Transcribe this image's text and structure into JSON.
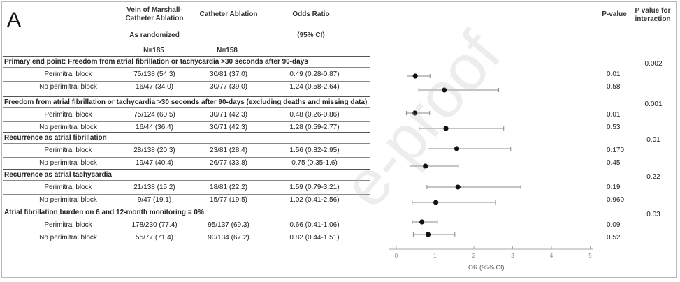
{
  "panel_label": "A",
  "headers": {
    "vom": "Vein of Marshall-Catheter Ablation",
    "ca": "Catheter Ablation",
    "or": "Odds Ratio",
    "as_randomized": "As randomized",
    "ci": "(95% CI)",
    "n_vom": "N=185",
    "n_ca": "N=158",
    "pvalue": "P-value",
    "pinteraction": "P value for interaction"
  },
  "sections": [
    {
      "title": "Primary end point: Freedom from atrial fibrillation or tachycardia >30 seconds after 90-days",
      "p_interaction": "0.002",
      "rows": [
        {
          "label": "Perimitral block",
          "vom": "75/138 (54.3)",
          "ca": "30/81 (37.0)",
          "or_text": "0.49 (0.28-0.87)",
          "p": "0.01"
        },
        {
          "label": "No perimitral block",
          "vom": "16/47 (34.0)",
          "ca": "30/77 (39.0)",
          "or_text": "1.24 (0.58-2.64)",
          "p": "0.58"
        }
      ]
    },
    {
      "title": "Freedom from atrial fibrillation or tachycardia >30 seconds after 90-days (excluding deaths and missing data)",
      "p_interaction": "0.001",
      "rows": [
        {
          "label": "Perimitral block",
          "vom": "75/124 (60.5)",
          "ca": "30/71 (42.3)",
          "or_text": "0.48 (0.26-0.86)",
          "p": "0.01"
        },
        {
          "label": "No perimitral block",
          "vom": "16/44 (36.4)",
          "ca": "30/71 (42.3)",
          "or_text": "1.28 (0.59-2.77)",
          "p": "0.53"
        }
      ]
    },
    {
      "title": "Recurrence as atrial fibrillation",
      "p_interaction": "0.01",
      "rows": [
        {
          "label": "Perimitral block",
          "vom": "28/138 (20.3)",
          "ca": "23/81 (28.4)",
          "or_text": "1.56 (0.82-2.95)",
          "p": "0.170"
        },
        {
          "label": "No perimitral block",
          "vom": "19/47 (40.4)",
          "ca": "26/77 (33.8)",
          "or_text": "0.75 (0.35-1.6)",
          "p": "0.45"
        }
      ]
    },
    {
      "title": "Recurrence as atrial tachycardia",
      "p_interaction": "0.22",
      "rows": [
        {
          "label": "Perimitral block",
          "vom": "21/138 (15.2)",
          "ca": "18/81 (22.2)",
          "or_text": "1.59 (0.79-3.21)",
          "p": "0.19"
        },
        {
          "label": "No perimitral block",
          "vom": "9/47 (19.1)",
          "ca": "15/77 (19.5)",
          "or_text": "1.02 (0.41-2.56)",
          "p": "0.960"
        }
      ]
    },
    {
      "title": "Atrial fibrillation burden on 6 and 12-month monitoring = 0%",
      "p_interaction": "0.03",
      "rows": [
        {
          "label": "Perimitral block",
          "vom": "178/230 (77.4)",
          "ca": "95/137 (69.3)",
          "or_text": "0.66 (0.41-1.06)",
          "p": "0.09"
        },
        {
          "label": "No perimitral block",
          "vom": "55/77 (71.4)",
          "ca": "90/134 (67.2)",
          "or_text": "0.82 (0.44-1.51)",
          "p": "0.52"
        }
      ]
    }
  ],
  "chart_data": {
    "type": "scatter",
    "subtype": "forest-plot",
    "xlabel": "OR (95% CI)",
    "xlim": [
      0,
      5
    ],
    "xticks": [
      "0",
      "1",
      "2",
      "3",
      "4",
      "5"
    ],
    "reference_line": 1,
    "points": [
      {
        "or": 0.49,
        "lo": 0.28,
        "hi": 0.87
      },
      {
        "or": 1.24,
        "lo": 0.58,
        "hi": 2.64
      },
      {
        "or": 0.48,
        "lo": 0.26,
        "hi": 0.86
      },
      {
        "or": 1.28,
        "lo": 0.59,
        "hi": 2.77
      },
      {
        "or": 1.56,
        "lo": 0.82,
        "hi": 2.95
      },
      {
        "or": 0.75,
        "lo": 0.35,
        "hi": 1.6
      },
      {
        "or": 1.59,
        "lo": 0.79,
        "hi": 3.21
      },
      {
        "or": 1.02,
        "lo": 0.41,
        "hi": 2.56
      },
      {
        "or": 0.66,
        "lo": 0.41,
        "hi": 1.06
      },
      {
        "or": 0.82,
        "lo": 0.44,
        "hi": 1.51
      }
    ],
    "colors": {
      "marker": "#111111",
      "whisker": "#8a8a8a",
      "reference": "#333333",
      "axis": "#aaaaaa"
    }
  },
  "watermark": "e-proof"
}
